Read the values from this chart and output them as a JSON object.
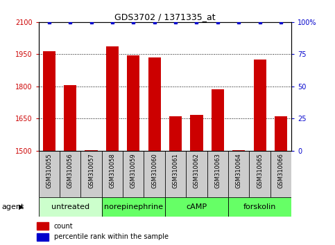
{
  "title": "GDS3702 / 1371335_at",
  "samples": [
    "GSM310055",
    "GSM310056",
    "GSM310057",
    "GSM310058",
    "GSM310059",
    "GSM310060",
    "GSM310061",
    "GSM310062",
    "GSM310063",
    "GSM310064",
    "GSM310065",
    "GSM310066"
  ],
  "counts": [
    1963,
    1805,
    1503,
    1988,
    1946,
    1935,
    1659,
    1668,
    1787,
    1503,
    1926,
    1660
  ],
  "percentiles": [
    100,
    100,
    100,
    100,
    100,
    100,
    100,
    100,
    100,
    100,
    100,
    100
  ],
  "bar_color": "#cc0000",
  "dot_color": "#0000cc",
  "ylim_left": [
    1500,
    2100
  ],
  "ylim_right": [
    0,
    100
  ],
  "yticks_left": [
    1500,
    1650,
    1800,
    1950,
    2100
  ],
  "yticks_right": [
    0,
    25,
    50,
    75,
    100
  ],
  "ytick_labels_left": [
    "1500",
    "1650",
    "1800",
    "1950",
    "2100"
  ],
  "ytick_labels_right": [
    "0",
    "25",
    "50",
    "75",
    "100%"
  ],
  "agents": [
    {
      "label": "untreated",
      "start": 0,
      "end": 3,
      "color": "#ccffcc"
    },
    {
      "label": "norepinephrine",
      "start": 3,
      "end": 6,
      "color": "#66ff66"
    },
    {
      "label": "cAMP",
      "start": 6,
      "end": 9,
      "color": "#66ff66"
    },
    {
      "label": "forskolin",
      "start": 9,
      "end": 12,
      "color": "#66ff66"
    }
  ],
  "agent_label": "agent",
  "legend_count_label": "count",
  "legend_percentile_label": "percentile rank within the sample",
  "background_color": "#ffffff",
  "plot_bg_color": "#ffffff",
  "tick_color_left": "#cc0000",
  "tick_color_right": "#0000cc",
  "sample_bg_color": "#cccccc",
  "bar_width": 0.6,
  "title_fontsize": 9,
  "tick_fontsize": 7,
  "sample_fontsize": 6,
  "agent_fontsize": 8,
  "legend_fontsize": 7
}
